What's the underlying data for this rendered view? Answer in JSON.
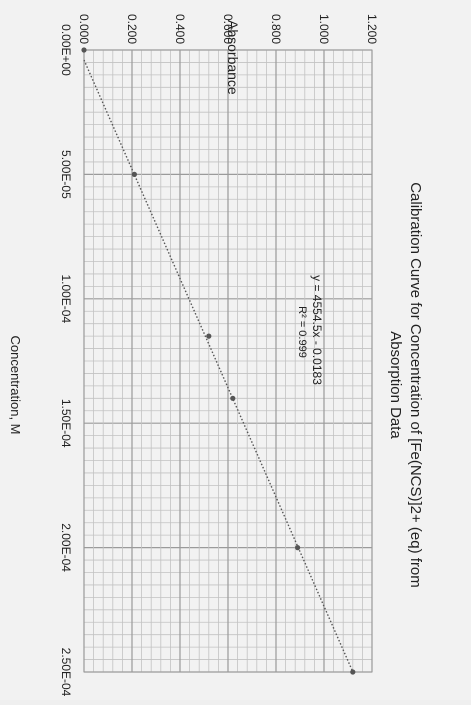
{
  "chart_data": {
    "type": "scatter",
    "title": "Calibration Curve for Concentration of [Fe(NCS)]2+ (eq) from Absorption Data",
    "title_lines": [
      "Calibration Curve for Concentration of [Fe(NCS)]2+ (eq) from",
      "Absorption Data"
    ],
    "xlabel": "Concentration, M",
    "ylabel": "Absorbance",
    "xlim": [
      0,
      0.00025
    ],
    "ylim": [
      0,
      1.2
    ],
    "x_ticks": [
      0,
      5e-05,
      0.0001,
      0.00015,
      0.0002,
      0.00025
    ],
    "x_tick_labels": [
      "0.00E+00",
      "5.00E-05",
      "1.00E-04",
      "1.50E-04",
      "2.00E-04",
      "2.50E-04"
    ],
    "y_ticks": [
      0,
      0.2,
      0.4,
      0.6,
      0.8,
      1.0,
      1.2
    ],
    "y_tick_labels": [
      "0.000",
      "0.200",
      "0.400",
      "0.600",
      "0.800",
      "1.000",
      "1.200"
    ],
    "grid": true,
    "rotation": "rotated 90 degrees clockwise",
    "series": [
      {
        "x": [
          0,
          5e-05,
          0.000115,
          0.00014,
          0.0002,
          0.00025
        ],
        "y": [
          0,
          0.21,
          0.52,
          0.62,
          0.89,
          1.12
        ],
        "color": "#555555"
      }
    ],
    "trendline": {
      "equation": "y = 4554.5x - 0.0183",
      "r_squared": "R² = 0.999",
      "slope": 4554.5,
      "intercept": -0.0183,
      "style": "dotted"
    }
  }
}
